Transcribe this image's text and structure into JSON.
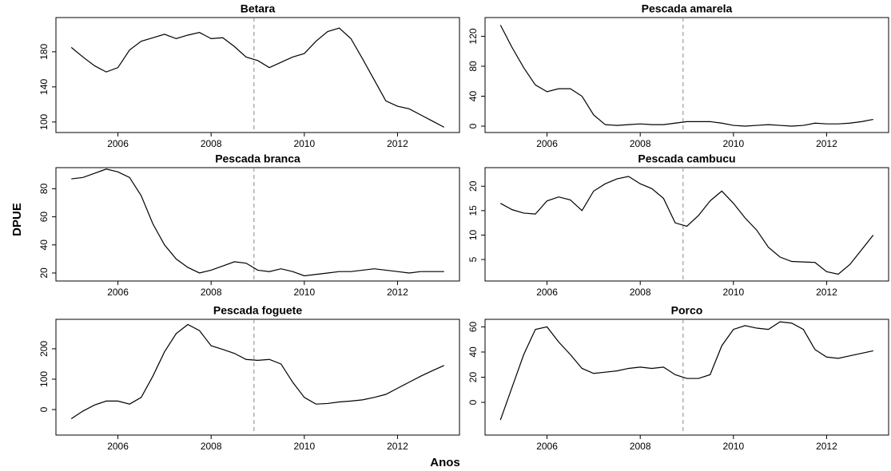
{
  "ylabel": "DPUE",
  "xlabel": "Anos",
  "chart_data": [
    {
      "type": "line",
      "title": "Betara",
      "color": "#000000",
      "vline": 2008.92,
      "xlim": [
        2004.67,
        2013.33
      ],
      "xticks": [
        2006,
        2008,
        2010,
        2012
      ],
      "ylim": [
        88,
        219
      ],
      "yticks": [
        100,
        140,
        180
      ],
      "x": [
        2005,
        2005.25,
        2005.5,
        2005.75,
        2006,
        2006.25,
        2006.5,
        2006.75,
        2007,
        2007.25,
        2007.5,
        2007.75,
        2008,
        2008.25,
        2008.5,
        2008.75,
        2009,
        2009.25,
        2009.5,
        2009.75,
        2010,
        2010.25,
        2010.5,
        2010.75,
        2011,
        2011.25,
        2011.5,
        2011.75,
        2012,
        2012.25,
        2012.5,
        2012.75,
        2013
      ],
      "values": [
        185,
        174,
        164,
        157,
        162,
        182,
        192,
        196,
        200,
        195,
        199,
        202,
        195,
        196,
        186,
        174,
        170,
        162,
        168,
        174,
        178,
        192,
        203,
        207,
        195,
        172,
        148,
        124,
        118,
        115,
        108,
        101,
        94
      ]
    },
    {
      "type": "line",
      "title": "Pescada amarela",
      "color": "#000000",
      "vline": 2008.92,
      "xlim": [
        2004.67,
        2013.33
      ],
      "xticks": [
        2006,
        2008,
        2010,
        2012
      ],
      "ylim": [
        -8.5,
        145
      ],
      "yticks": [
        0,
        40,
        80,
        120
      ],
      "x": [
        2005,
        2005.25,
        2005.5,
        2005.75,
        2006,
        2006.25,
        2006.5,
        2006.75,
        2007,
        2007.25,
        2007.5,
        2007.75,
        2008,
        2008.25,
        2008.5,
        2008.75,
        2009,
        2009.25,
        2009.5,
        2009.75,
        2010,
        2010.25,
        2010.5,
        2010.75,
        2011,
        2011.25,
        2011.5,
        2011.75,
        2012,
        2012.25,
        2012.5,
        2012.75,
        2013
      ],
      "values": [
        135,
        105,
        78,
        55,
        46,
        50,
        50,
        40,
        15,
        2,
        1,
        2,
        3,
        2,
        2,
        4,
        6,
        6,
        6,
        4,
        1,
        0,
        1,
        2,
        1,
        0,
        1,
        4,
        3,
        3,
        4,
        6,
        9
      ]
    },
    {
      "type": "line",
      "title": "Pescada branca",
      "color": "#000000",
      "vline": 2008.92,
      "xlim": [
        2004.67,
        2013.33
      ],
      "xticks": [
        2006,
        2008,
        2010,
        2012
      ],
      "ylim": [
        14.3,
        95
      ],
      "yticks": [
        20,
        40,
        60,
        80
      ],
      "x": [
        2005,
        2005.25,
        2005.5,
        2005.75,
        2006,
        2006.25,
        2006.5,
        2006.75,
        2007,
        2007.25,
        2007.5,
        2007.75,
        2008,
        2008.25,
        2008.5,
        2008.75,
        2009,
        2009.25,
        2009.5,
        2009.75,
        2010,
        2010.25,
        2010.5,
        2010.75,
        2011,
        2011.25,
        2011.5,
        2011.75,
        2012,
        2012.25,
        2012.5,
        2012.75,
        2013
      ],
      "values": [
        87,
        88,
        91,
        94,
        92,
        88,
        75,
        55,
        40,
        30,
        24,
        20,
        22,
        25,
        28,
        27,
        22,
        21,
        23,
        21,
        18,
        19,
        20,
        21,
        21,
        22,
        23,
        22,
        21,
        20,
        21,
        21,
        21
      ]
    },
    {
      "type": "line",
      "title": "Pescada cambucu",
      "color": "#000000",
      "vline": 2008.92,
      "xlim": [
        2004.67,
        2013.33
      ],
      "xticks": [
        2006,
        2008,
        2010,
        2012
      ],
      "ylim": [
        0.6,
        23.8
      ],
      "yticks": [
        5,
        10,
        15,
        20
      ],
      "x": [
        2005,
        2005.25,
        2005.5,
        2005.75,
        2006,
        2006.25,
        2006.5,
        2006.75,
        2007,
        2007.25,
        2007.5,
        2007.75,
        2008,
        2008.25,
        2008.5,
        2008.75,
        2009,
        2009.25,
        2009.5,
        2009.75,
        2010,
        2010.25,
        2010.5,
        2010.75,
        2011,
        2011.25,
        2011.5,
        2011.75,
        2012,
        2012.25,
        2012.5,
        2012.75,
        2013
      ],
      "values": [
        16.5,
        15.2,
        14.5,
        14.3,
        17,
        17.8,
        17.2,
        15,
        19,
        20.5,
        21.5,
        22,
        20.5,
        19.5,
        17.5,
        12.5,
        11.8,
        14,
        17,
        19,
        16.5,
        13.5,
        11,
        7.5,
        5.5,
        4.6,
        4.5,
        4.4,
        2.5,
        2,
        4,
        7,
        10
      ]
    },
    {
      "type": "line",
      "title": "Pescada  foguete",
      "color": "#000000",
      "vline": 2008.92,
      "xlim": [
        2004.67,
        2013.33
      ],
      "xticks": [
        2006,
        2008,
        2010,
        2012
      ],
      "ylim": [
        -84,
        297
      ],
      "yticks": [
        0,
        100,
        200
      ],
      "x": [
        2005,
        2005.25,
        2005.5,
        2005.75,
        2006,
        2006.25,
        2006.5,
        2006.75,
        2007,
        2007.25,
        2007.5,
        2007.75,
        2008,
        2008.25,
        2008.5,
        2008.75,
        2009,
        2009.25,
        2009.5,
        2009.75,
        2010,
        2010.25,
        2010.5,
        2010.75,
        2011,
        2011.25,
        2011.5,
        2011.75,
        2012,
        2012.25,
        2012.5,
        2012.75,
        2013
      ],
      "values": [
        -30,
        -5,
        15,
        28,
        28,
        18,
        40,
        110,
        190,
        250,
        280,
        260,
        210,
        198,
        185,
        165,
        162,
        165,
        150,
        90,
        40,
        18,
        20,
        25,
        28,
        32,
        40,
        50,
        70,
        90,
        110,
        128,
        145
      ]
    },
    {
      "type": "line",
      "title": "Porco",
      "color": "#000000",
      "vline": 2008.92,
      "xlim": [
        2004.67,
        2013.33
      ],
      "xticks": [
        2006,
        2008,
        2010,
        2012
      ],
      "ylim": [
        -26,
        66
      ],
      "yticks": [
        0,
        20,
        40,
        60
      ],
      "x": [
        2005,
        2005.25,
        2005.5,
        2005.75,
        2006,
        2006.25,
        2006.5,
        2006.75,
        2007,
        2007.25,
        2007.5,
        2007.75,
        2008,
        2008.25,
        2008.5,
        2008.75,
        2009,
        2009.25,
        2009.5,
        2009.75,
        2010,
        2010.25,
        2010.5,
        2010.75,
        2011,
        2011.25,
        2011.5,
        2011.75,
        2012,
        2012.25,
        2012.5,
        2012.75,
        2013
      ],
      "values": [
        -14,
        12,
        38,
        58,
        60,
        48,
        38,
        27,
        23,
        24,
        25,
        27,
        28,
        27,
        28,
        22,
        19,
        19,
        22,
        45,
        58,
        61,
        59,
        58,
        64,
        63,
        58,
        42,
        36,
        35,
        37,
        39,
        41
      ]
    }
  ]
}
